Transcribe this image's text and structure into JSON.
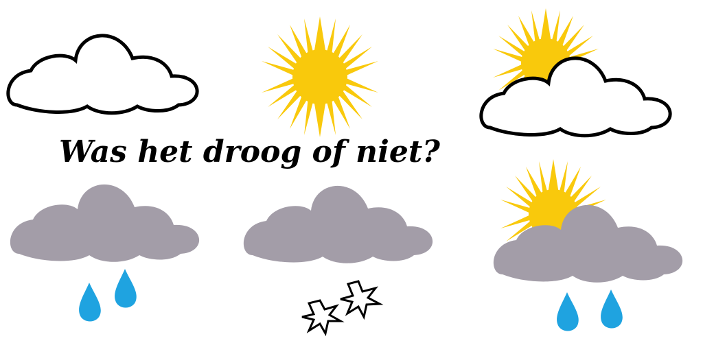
{
  "title": "Was het droog of niet?",
  "icons": [
    {
      "name": "cloud-icon",
      "type": "cloud"
    },
    {
      "name": "sun-icon",
      "type": "sun"
    },
    {
      "name": "partly-cloudy-icon",
      "type": "sun-behind-cloud"
    },
    {
      "name": "rain-icon",
      "type": "cloud-with-rain"
    },
    {
      "name": "snow-icon",
      "type": "cloud-with-snow"
    },
    {
      "name": "sun-shower-icon",
      "type": "sun-cloud-with-rain"
    }
  ],
  "colors": {
    "sun": "#F9C90C",
    "cloud_outline": "#000000",
    "cloud_fill_white": "#FFFFFF",
    "cloud_fill_gray": "#A39DA8",
    "rain": "#1FA3E0",
    "text": "#000000"
  }
}
